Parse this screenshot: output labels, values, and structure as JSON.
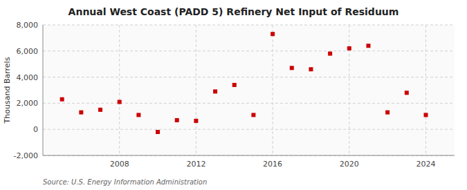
{
  "chart_data": {
    "type": "scatter",
    "title": "Annual West Coast (PADD 5) Refinery Net Input of Residuum",
    "ylabel": "Thousand Barrels",
    "annotations": [
      "Source: U.S. Energy Information Administration"
    ],
    "x": [
      2005,
      2006,
      2007,
      2008,
      2009,
      2010,
      2011,
      2012,
      2013,
      2014,
      2015,
      2016,
      2017,
      2018,
      2019,
      2020,
      2021,
      2022,
      2023,
      2024
    ],
    "values": [
      2300,
      1300,
      1500,
      2100,
      1100,
      -200,
      700,
      650,
      2900,
      3400,
      1100,
      7300,
      4700,
      4600,
      5800,
      6200,
      6400,
      1300,
      2800,
      1100
    ],
    "color": "#cc0000",
    "marker": "square",
    "xlim": [
      2004.0,
      2025.5
    ],
    "xticks": [
      2008,
      2012,
      2016,
      2020,
      2024
    ],
    "ylim": [
      -2000,
      8000
    ],
    "yticks": [
      {
        "value": -2000,
        "label": "-2,000"
      },
      0,
      {
        "value": 2000,
        "label": "2,000"
      },
      {
        "value": 4000,
        "label": "4,000"
      },
      {
        "value": 6000,
        "label": "6,000"
      },
      {
        "value": 8000,
        "label": "8,000"
      }
    ],
    "grid": true
  }
}
